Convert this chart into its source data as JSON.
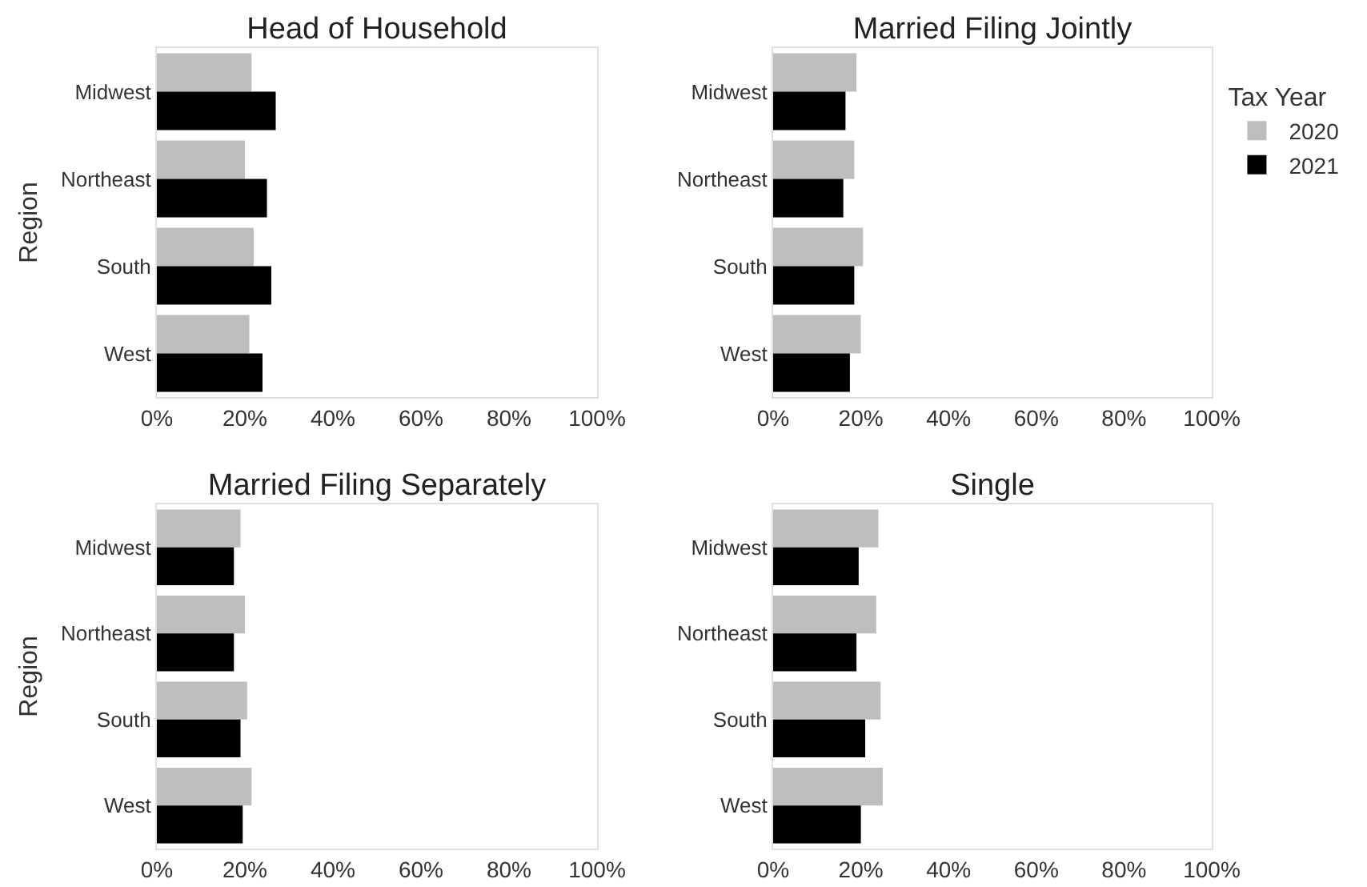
{
  "chart_data": [
    {
      "type": "bar",
      "orientation": "horizontal",
      "title": "Head of Household",
      "ylabel": "Region",
      "categories": [
        "Midwest",
        "Northeast",
        "South",
        "West"
      ],
      "xlim": [
        0,
        100
      ],
      "xticks": [
        {
          "value": 0,
          "label": "0%"
        },
        {
          "value": 20,
          "label": "20%"
        },
        {
          "value": 40,
          "label": "40%"
        },
        {
          "value": 60,
          "label": "60%"
        },
        {
          "value": 80,
          "label": "80%"
        },
        {
          "value": 100,
          "label": "100%"
        }
      ],
      "grid": false,
      "legend": false,
      "series": [
        {
          "color": "#bebebe",
          "values": [
            21.5,
            20,
            22,
            21
          ]
        },
        {
          "color": "#000000",
          "values": [
            27,
            25,
            26,
            24
          ]
        }
      ]
    },
    {
      "type": "bar",
      "orientation": "horizontal",
      "title": "Married Filing Jointly",
      "legend_title": "Tax Year",
      "categories": [
        "Midwest",
        "Northeast",
        "South",
        "West"
      ],
      "xlim": [
        0,
        100
      ],
      "xticks": [
        {
          "value": 0,
          "label": "0%"
        },
        {
          "value": 20,
          "label": "20%"
        },
        {
          "value": 40,
          "label": "40%"
        },
        {
          "value": 60,
          "label": "60%"
        },
        {
          "value": 80,
          "label": "80%"
        },
        {
          "value": 100,
          "label": "100%"
        }
      ],
      "grid": false,
      "legend": "right",
      "series": [
        {
          "name": "2020",
          "color": "#bebebe",
          "values": [
            19,
            18.5,
            20.5,
            20
          ]
        },
        {
          "name": "2021",
          "color": "#000000",
          "values": [
            16.5,
            16,
            18.5,
            17.5
          ]
        }
      ]
    },
    {
      "type": "bar",
      "orientation": "horizontal",
      "title": "Married Filing Separately",
      "ylabel": "Region",
      "categories": [
        "Midwest",
        "Northeast",
        "South",
        "West"
      ],
      "xlim": [
        0,
        100
      ],
      "xticks": [
        {
          "value": 0,
          "label": "0%"
        },
        {
          "value": 20,
          "label": "20%"
        },
        {
          "value": 40,
          "label": "40%"
        },
        {
          "value": 60,
          "label": "60%"
        },
        {
          "value": 80,
          "label": "80%"
        },
        {
          "value": 100,
          "label": "100%"
        }
      ],
      "grid": false,
      "legend": false,
      "series": [
        {
          "color": "#bebebe",
          "values": [
            19,
            20,
            20.5,
            21.5
          ]
        },
        {
          "color": "#000000",
          "values": [
            17.5,
            17.5,
            19,
            19.5
          ]
        }
      ]
    },
    {
      "type": "bar",
      "orientation": "horizontal",
      "title": "Single",
      "categories": [
        "Midwest",
        "Northeast",
        "South",
        "West"
      ],
      "xlim": [
        0,
        100
      ],
      "xticks": [
        {
          "value": 0,
          "label": "0%"
        },
        {
          "value": 20,
          "label": "20%"
        },
        {
          "value": 40,
          "label": "40%"
        },
        {
          "value": 60,
          "label": "60%"
        },
        {
          "value": 80,
          "label": "80%"
        },
        {
          "value": 100,
          "label": "100%"
        }
      ],
      "grid": false,
      "legend": false,
      "series": [
        {
          "color": "#bebebe",
          "values": [
            24,
            23.5,
            24.5,
            25
          ]
        },
        {
          "color": "#000000",
          "values": [
            19.5,
            19,
            21,
            20
          ]
        }
      ]
    }
  ]
}
